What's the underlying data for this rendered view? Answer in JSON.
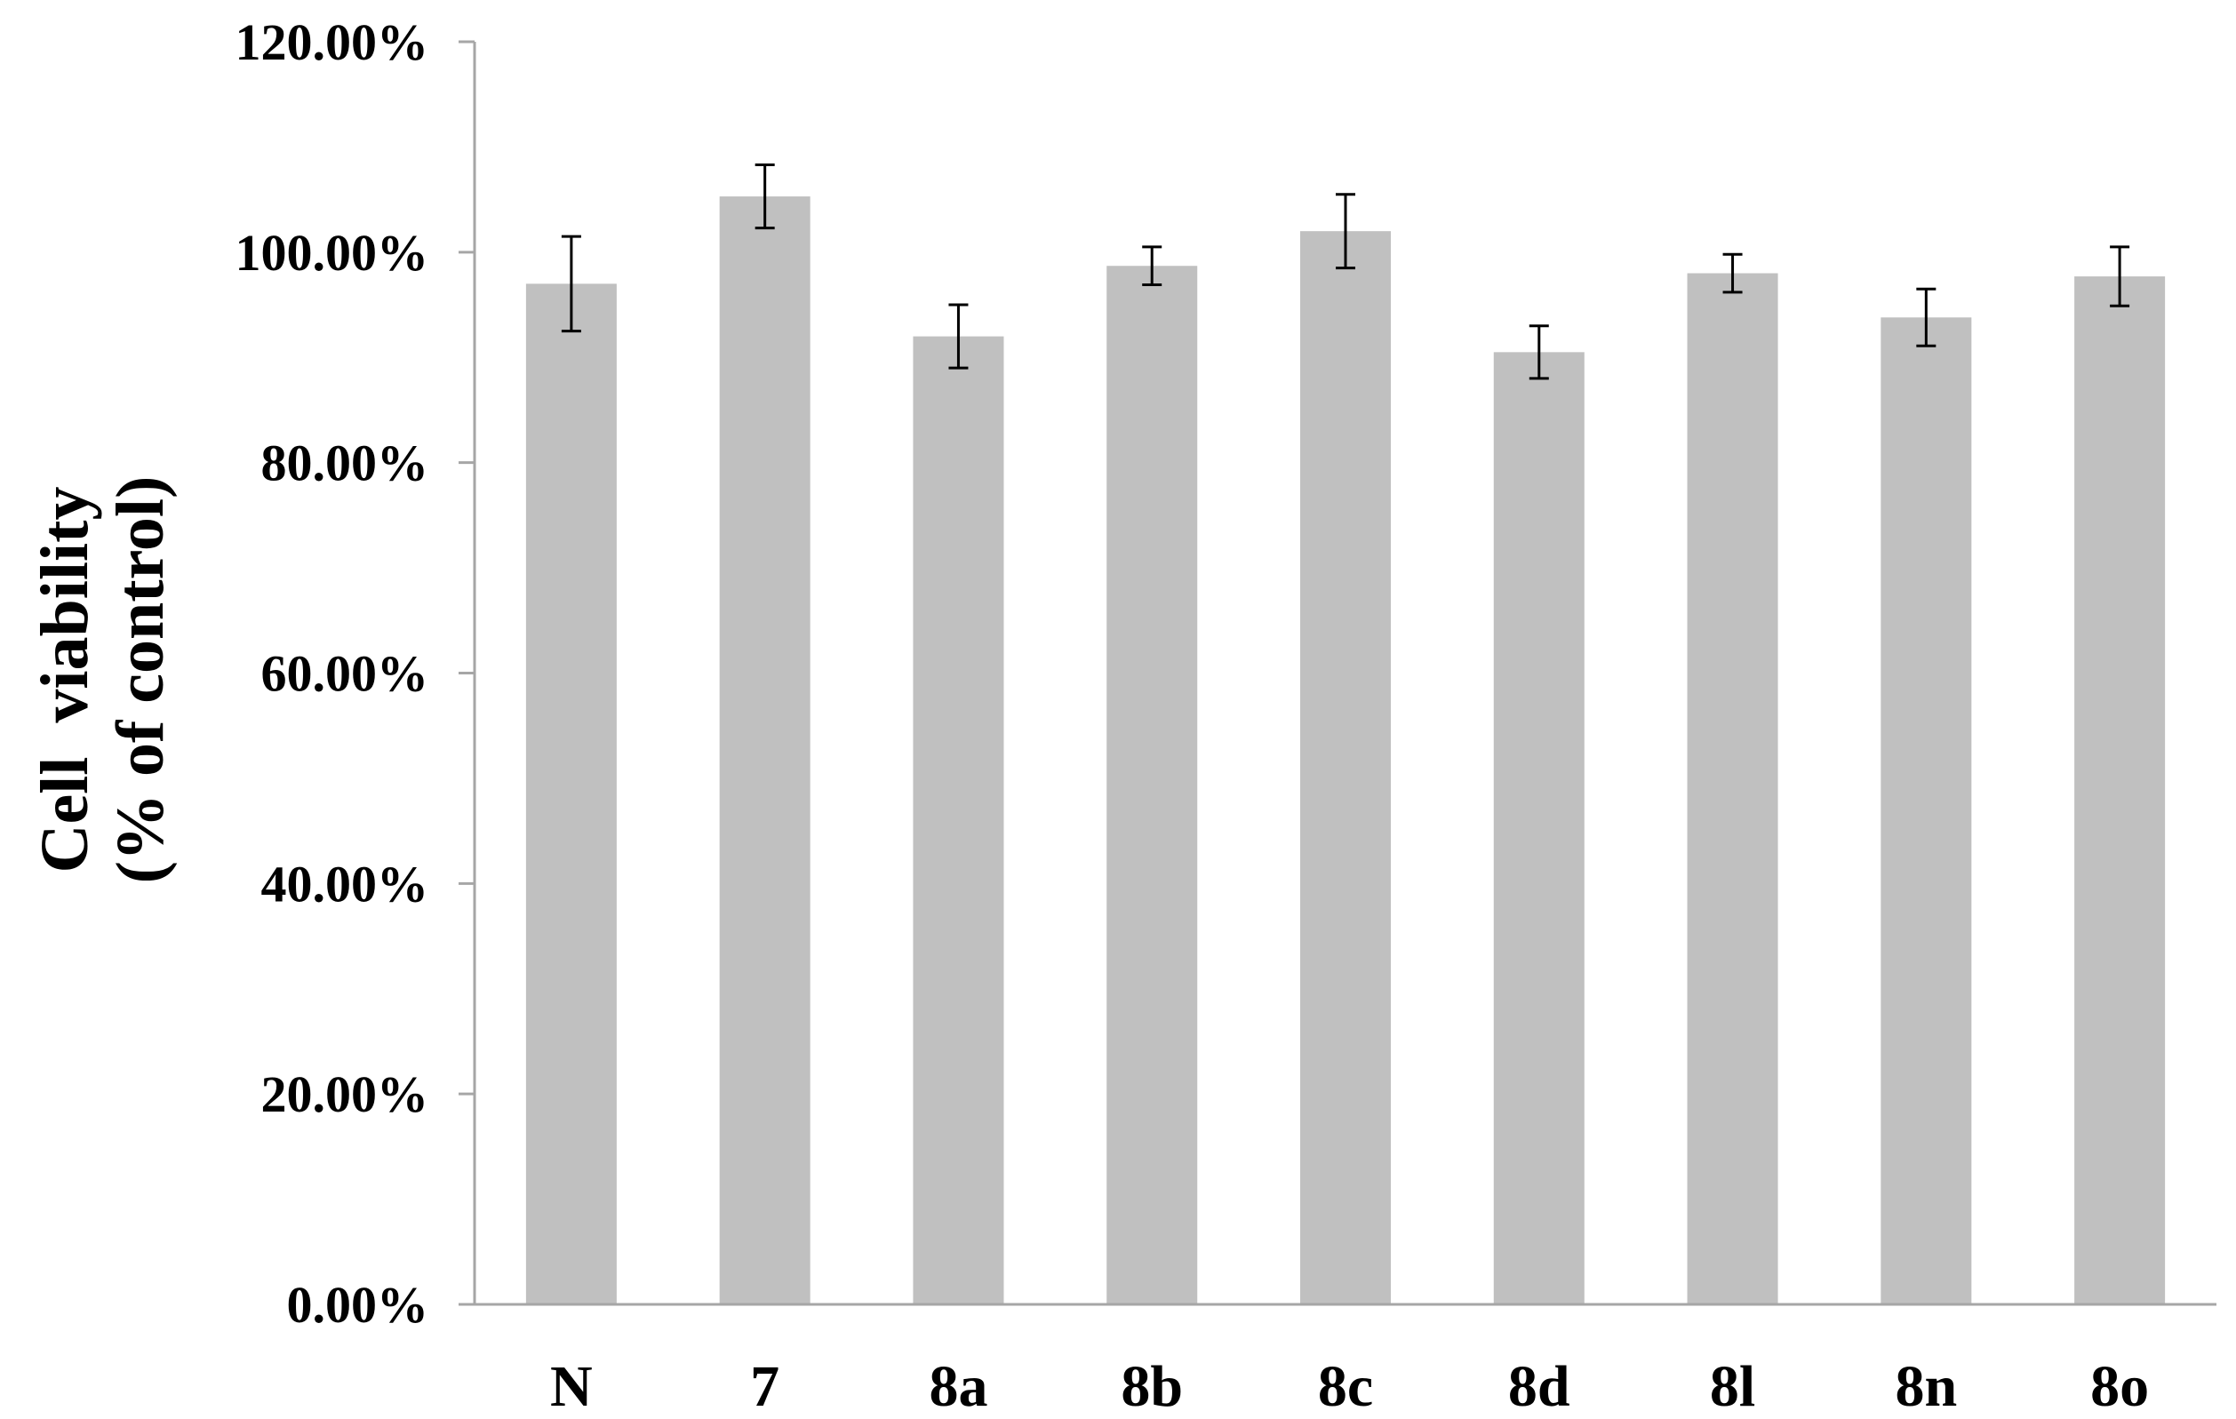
{
  "chart_data": {
    "type": "bar",
    "title": "",
    "xlabel": "",
    "ylabel_lines": [
      "Cell  viability",
      "(% of control)"
    ],
    "categories": [
      "N",
      "7",
      "8a",
      "8b",
      "8c",
      "8d",
      "8l",
      "8n",
      "8o"
    ],
    "values": [
      97.0,
      105.3,
      92.0,
      98.7,
      102.0,
      90.5,
      98.0,
      93.8,
      97.7
    ],
    "errors": [
      4.5,
      3.0,
      3.0,
      1.8,
      3.5,
      2.5,
      1.8,
      2.7,
      2.8
    ],
    "ylim": [
      0,
      120
    ],
    "yticks": [
      "0.00%",
      "20.00%",
      "40.00%",
      "60.00%",
      "80.00%",
      "100.00%",
      "120.00%"
    ],
    "ytick_values": [
      0,
      20,
      40,
      60,
      80,
      100,
      120
    ],
    "grid": false,
    "legend": "none",
    "colors": {
      "bar": "#c0c0c0",
      "axis": "#a6a6a6",
      "error_bar": "#000000",
      "text": "#000000"
    }
  }
}
